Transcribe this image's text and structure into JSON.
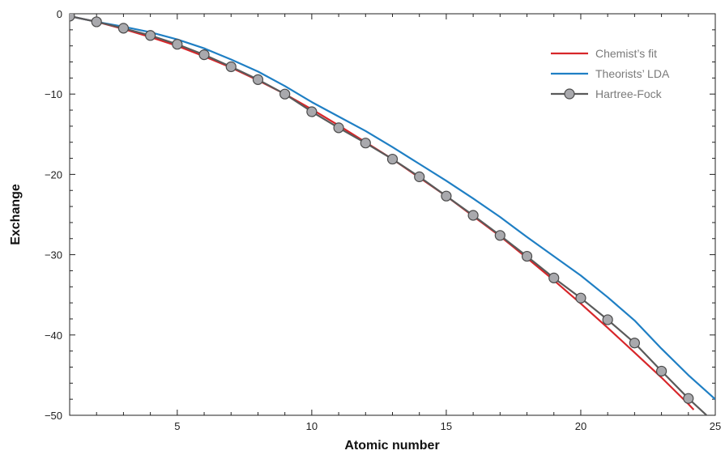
{
  "chart_data": {
    "type": "line",
    "xlabel": "Atomic number",
    "ylabel": "Exchange",
    "xlim": [
      1,
      25
    ],
    "ylim": [
      -50,
      0
    ],
    "xticks": [
      5,
      10,
      15,
      20,
      25
    ],
    "xtick_labels": [
      "5",
      "10",
      "15",
      "20",
      "25"
    ],
    "yticks": [
      0,
      -10,
      -20,
      -30,
      -40,
      -50
    ],
    "ytick_labels": [
      "0",
      "−10",
      "−20",
      "−30",
      "−40",
      "−50"
    ],
    "grid": false,
    "legend_position": "top-right",
    "series": [
      {
        "name": "Chemist’s fit",
        "color": "#d7262a",
        "marker": "none",
        "x": [
          1,
          2,
          3,
          4,
          5,
          6,
          7,
          8,
          9,
          10,
          11,
          12,
          13,
          14,
          15,
          16,
          17,
          18,
          19,
          20,
          21,
          22,
          23,
          24,
          24.2
        ],
        "y": [
          -0.3,
          -1.0,
          -1.9,
          -2.9,
          -4.0,
          -5.3,
          -6.7,
          -8.3,
          -10.0,
          -11.9,
          -13.9,
          -16.0,
          -18.1,
          -20.4,
          -22.7,
          -25.2,
          -27.7,
          -30.4,
          -33.2,
          -36.1,
          -39.1,
          -42.2,
          -45.3,
          -48.6,
          -49.3
        ]
      },
      {
        "name": "Theorists’ LDA",
        "color": "#1f7fc4",
        "marker": "none",
        "x": [
          1,
          2,
          3,
          4,
          5,
          6,
          7,
          8,
          9,
          10,
          11,
          12,
          13,
          14,
          15,
          16,
          17,
          18,
          19,
          20,
          21,
          22,
          23,
          24,
          25
        ],
        "y": [
          -0.3,
          -1.0,
          -1.6,
          -2.3,
          -3.2,
          -4.3,
          -5.7,
          -7.2,
          -9.0,
          -11.0,
          -12.8,
          -14.6,
          -16.6,
          -18.7,
          -20.8,
          -23.0,
          -25.3,
          -27.8,
          -30.2,
          -32.6,
          -35.3,
          -38.2,
          -41.7,
          -45.0,
          -48.0
        ]
      },
      {
        "name": "Hartree-Fock",
        "color": "#5a5a5a",
        "marker": "circle",
        "x": [
          1,
          2,
          3,
          4,
          5,
          6,
          7,
          8,
          9,
          10,
          11,
          12,
          13,
          14,
          15,
          16,
          17,
          18,
          19,
          20,
          21,
          22,
          23,
          24,
          25
        ],
        "y": [
          -0.3,
          -1.0,
          -1.8,
          -2.7,
          -3.8,
          -5.1,
          -6.6,
          -8.2,
          -10.0,
          -12.2,
          -14.2,
          -16.1,
          -18.1,
          -20.3,
          -22.7,
          -25.1,
          -27.6,
          -30.2,
          -32.9,
          -35.4,
          -38.1,
          -41.0,
          -44.5,
          -47.9,
          -51.0
        ]
      }
    ]
  }
}
